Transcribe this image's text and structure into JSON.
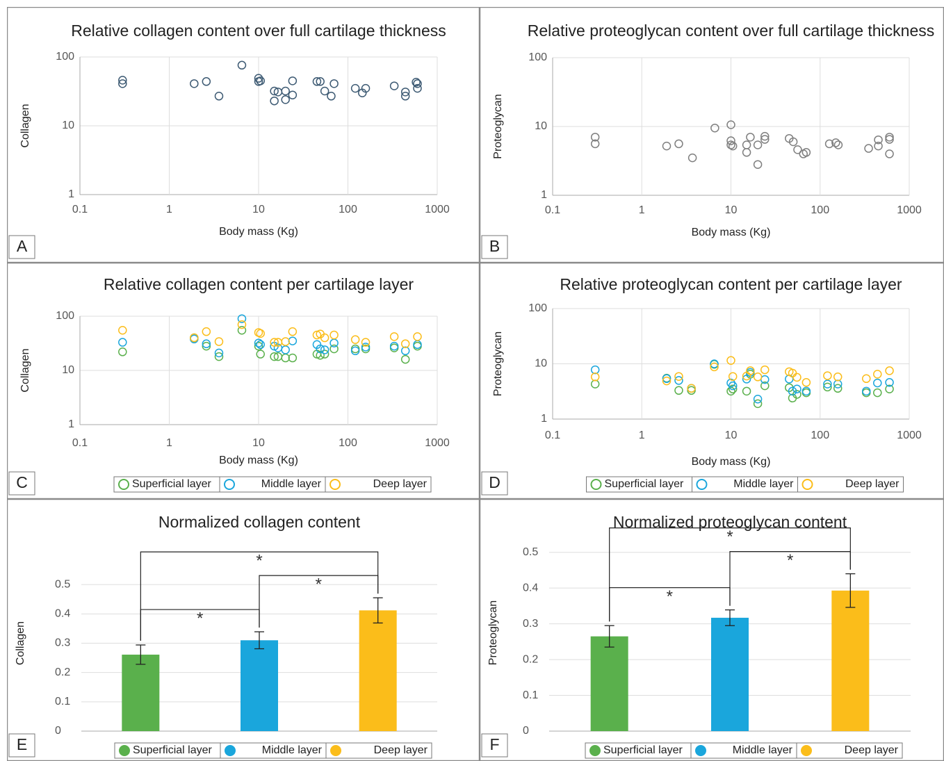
{
  "chart_data": [
    {
      "type": "scatter",
      "label": "A",
      "title": "Relative collagen content over full cartilage thickness",
      "xlabel": "Body mass (Kg)",
      "ylabel": "Collagen",
      "log_x": true,
      "log_y": true,
      "grid": true,
      "xlim": [
        0.1,
        1000
      ],
      "xticks": [
        0.1,
        1,
        10,
        100,
        1000
      ],
      "ylim": [
        1,
        100
      ],
      "yticks": [
        1,
        10,
        100
      ],
      "x": [
        0.3,
        0.3,
        1.9,
        2.6,
        3.6,
        6.5,
        10,
        10,
        10.5,
        15,
        16.5,
        15,
        20,
        20,
        24,
        24,
        45,
        49,
        55,
        65,
        70,
        121,
        145,
        158,
        330,
        440,
        440,
        580,
        600,
        600
      ],
      "series": [
        {
          "color": "#3d5a73",
          "values": [
            46,
            41,
            41,
            44,
            27,
            76,
            49,
            44,
            45,
            32,
            31,
            23,
            32,
            24,
            45,
            28,
            44,
            44,
            32,
            27,
            41,
            35,
            30,
            35,
            38,
            31,
            27,
            43,
            41,
            35
          ]
        }
      ]
    },
    {
      "type": "scatter",
      "label": "B",
      "title": "Relative proteoglycan content over full cartilage thickness",
      "xlabel": "Body mass (Kg)",
      "ylabel": "Proteoglycan",
      "log_x": true,
      "log_y": true,
      "grid": true,
      "xlim": [
        0.1,
        1000
      ],
      "xticks": [
        0.1,
        1,
        10,
        100,
        1000
      ],
      "ylim": [
        1,
        100
      ],
      "yticks": [
        1,
        10,
        100
      ],
      "x": [
        0.3,
        0.3,
        1.9,
        2.6,
        3.7,
        6.6,
        10,
        10,
        10,
        10.5,
        15,
        15,
        16.5,
        20,
        20,
        24,
        24,
        45,
        50,
        56,
        65,
        70,
        127,
        150,
        160,
        350,
        450,
        450,
        600,
        600,
        600
      ],
      "series": [
        {
          "color": "#7f7f7f",
          "values": [
            7.0,
            5.6,
            5.2,
            5.6,
            3.5,
            9.5,
            10.6,
            6.2,
            5.4,
            5.2,
            5.4,
            4.2,
            7.0,
            5.4,
            2.8,
            7.2,
            6.5,
            6.7,
            6.0,
            4.6,
            4.0,
            4.2,
            5.6,
            5.8,
            5.4,
            4.8,
            6.4,
            5.2,
            7.0,
            6.5,
            4.0
          ]
        }
      ]
    },
    {
      "type": "scatter",
      "label": "C",
      "title": "Relative collagen content per cartilage layer",
      "xlabel": "Body mass (Kg)",
      "ylabel": "Collagen",
      "log_x": true,
      "log_y": true,
      "grid": true,
      "xlim": [
        0.1,
        1000
      ],
      "xticks": [
        0.1,
        1,
        10,
        100,
        1000
      ],
      "ylim": [
        1,
        100
      ],
      "yticks": [
        1,
        10,
        100
      ],
      "x": [
        0.3,
        1.9,
        2.6,
        3.6,
        6.5,
        10,
        10.5,
        15,
        16.5,
        20,
        24,
        45,
        49,
        55,
        70,
        121,
        158,
        330,
        440,
        600
      ],
      "series": [
        {
          "name": "Superficial layer",
          "color": "#5ab04c",
          "values": [
            22,
            40,
            28,
            18,
            55,
            28,
            20,
            18,
            18,
            17,
            17,
            20,
            19,
            20,
            25,
            25,
            25,
            26,
            16,
            28
          ]
        },
        {
          "name": "Middle layer",
          "color": "#1aa6dc",
          "values": [
            33,
            38,
            31,
            21,
            90,
            32,
            30,
            28,
            26,
            24,
            35,
            30,
            25,
            24,
            32,
            23,
            27,
            28,
            23,
            30
          ]
        },
        {
          "name": "Deep layer",
          "color": "#fbbd1a",
          "values": [
            55,
            40,
            52,
            34,
            70,
            50,
            48,
            33,
            33,
            34,
            52,
            45,
            47,
            40,
            45,
            37,
            33,
            42,
            31,
            42
          ]
        }
      ]
    },
    {
      "type": "scatter",
      "label": "D",
      "title": "Relative proteoglycan content per cartilage layer",
      "xlabel": "Body mass (Kg)",
      "ylabel": "Proteoglycan",
      "log_x": true,
      "log_y": true,
      "grid": true,
      "xlim": [
        0.1,
        1000
      ],
      "xticks": [
        0.1,
        1,
        10,
        100,
        1000
      ],
      "ylim": [
        1,
        100
      ],
      "yticks": [
        1,
        10,
        100
      ],
      "x": [
        0.3,
        1.9,
        2.6,
        3.6,
        6.5,
        10,
        10.5,
        15,
        16.5,
        20,
        24,
        45,
        49,
        55,
        70,
        121,
        158,
        330,
        440,
        600
      ],
      "series": [
        {
          "name": "Superficial layer",
          "color": "#5ab04c",
          "values": [
            4.3,
            5.5,
            3.3,
            3.3,
            9.8,
            3.2,
            3.5,
            3.2,
            6.5,
            1.9,
            4.0,
            3.7,
            2.4,
            2.8,
            3.0,
            3.8,
            3.6,
            3.0,
            3.0,
            3.5
          ]
        },
        {
          "name": "Middle layer",
          "color": "#1aa6dc",
          "values": [
            7.8,
            5.4,
            5.0,
            3.6,
            10.0,
            4.5,
            4.0,
            5.3,
            7.0,
            2.3,
            5.2,
            5.3,
            3.2,
            3.5,
            3.2,
            4.3,
            4.3,
            3.2,
            4.5,
            4.6
          ]
        },
        {
          "name": "Deep layer",
          "color": "#fbbd1a",
          "values": [
            5.8,
            4.9,
            5.9,
            3.6,
            8.8,
            11.5,
            5.9,
            6.0,
            7.5,
            5.8,
            7.8,
            7.2,
            6.8,
            5.7,
            4.6,
            6.1,
            5.8,
            5.4,
            6.5,
            7.5
          ]
        }
      ]
    },
    {
      "type": "bar",
      "label": "E",
      "title": "Normalized collagen content",
      "ylabel": "Collagen",
      "grid": true,
      "ylim": [
        0,
        0.6
      ],
      "yticks": [
        0,
        0.1,
        0.2,
        0.3,
        0.4,
        0.5
      ],
      "series": [
        {
          "name": "Superficial layer",
          "color": "#5ab04c",
          "values": [
            0.261
          ],
          "errors": [
            0.033
          ]
        },
        {
          "name": "Middle layer",
          "color": "#1aa6dc",
          "values": [
            0.31
          ],
          "errors": [
            0.029
          ]
        },
        {
          "name": "Deep layer",
          "color": "#fbbd1a",
          "values": [
            0.412
          ],
          "errors": [
            0.043
          ]
        }
      ],
      "comparisons": [
        {
          "pair": [
            0,
            1
          ],
          "label": "*"
        },
        {
          "pair": [
            1,
            2
          ],
          "label": "*"
        },
        {
          "pair": [
            0,
            2
          ],
          "label": "*"
        }
      ]
    },
    {
      "type": "bar",
      "label": "F",
      "title": "Normalized proteoglycan content",
      "ylabel": "Proteoglycan",
      "grid": true,
      "ylim": [
        0,
        0.55
      ],
      "yticks": [
        0,
        0.1,
        0.2,
        0.3,
        0.4,
        0.5
      ],
      "series": [
        {
          "name": "Superficial layer",
          "color": "#5ab04c",
          "values": [
            0.265
          ],
          "errors": [
            0.03
          ]
        },
        {
          "name": "Middle layer",
          "color": "#1aa6dc",
          "values": [
            0.317
          ],
          "errors": [
            0.022
          ]
        },
        {
          "name": "Deep layer",
          "color": "#fbbd1a",
          "values": [
            0.393
          ],
          "errors": [
            0.047
          ]
        }
      ],
      "comparisons": [
        {
          "pair": [
            0,
            1
          ],
          "label": "*"
        },
        {
          "pair": [
            1,
            2
          ],
          "label": "*"
        },
        {
          "pair": [
            0,
            2
          ],
          "label": "*"
        }
      ]
    }
  ]
}
